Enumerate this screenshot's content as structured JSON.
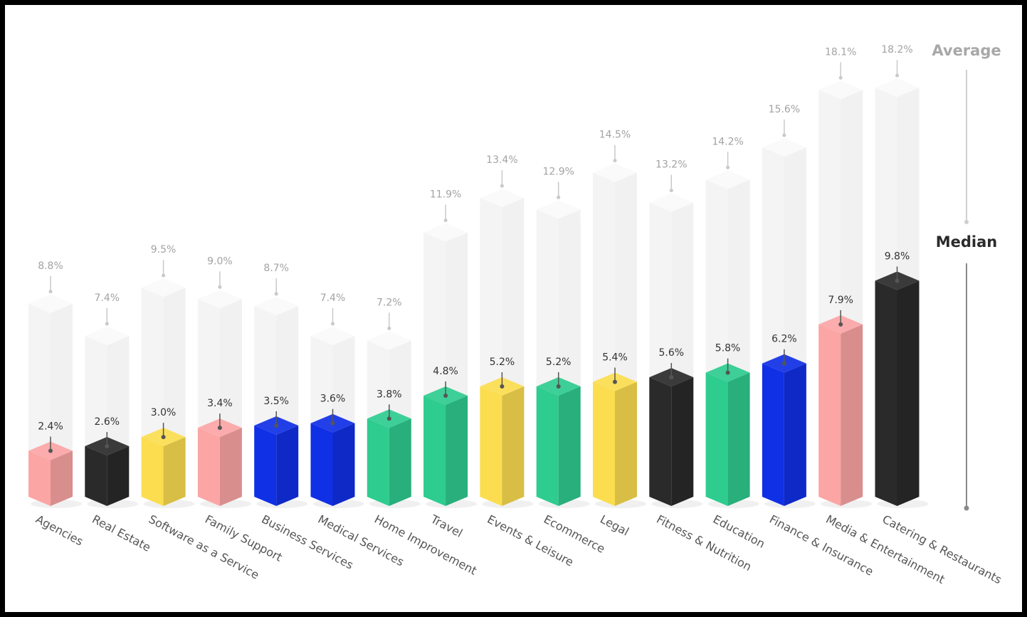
{
  "chart_data": {
    "type": "bar",
    "categories": [
      "Agencies",
      "Real Estate",
      "Software as a Service",
      "Family Support",
      "Business Services",
      "Medical Services",
      "Home Improvement",
      "Travel",
      "Events & Leisure",
      "Ecommerce",
      "Legal",
      "Fitness & Nutrition",
      "Education",
      "Finance & Insurance",
      "Media & Entertainment",
      "Catering & Restaurants"
    ],
    "category_icons": [
      "megaphone-icon",
      "house-icon",
      "gear-icon",
      "family-icon",
      "handshake-icon",
      "eye-icon",
      "toolbox-icon",
      "airplane-icon",
      "calendar-check-icon",
      "cart-icon",
      "gavel-icon",
      "dumbbell-icon",
      "book-icon",
      "dollar-coin-icon",
      "play-icon",
      "food-plate-icon"
    ],
    "series": [
      {
        "name": "Average",
        "values": [
          8.8,
          7.4,
          9.5,
          9.0,
          8.7,
          7.4,
          7.2,
          11.9,
          13.4,
          12.9,
          14.5,
          13.2,
          14.2,
          15.6,
          18.1,
          18.2
        ]
      },
      {
        "name": "Median",
        "values": [
          2.4,
          2.6,
          3.0,
          3.4,
          3.5,
          3.6,
          3.8,
          4.8,
          5.2,
          5.2,
          5.4,
          5.6,
          5.8,
          6.2,
          7.9,
          9.8
        ]
      }
    ],
    "value_labels": {
      "average": [
        "8.8%",
        "7.4%",
        "9.5%",
        "9.0%",
        "8.7%",
        "7.4%",
        "7.2%",
        "11.9%",
        "13.4%",
        "12.9%",
        "14.5%",
        "13.2%",
        "14.2%",
        "15.6%",
        "18.1%",
        "18.2%"
      ],
      "median": [
        "2.4%",
        "2.6%",
        "3.0%",
        "3.4%",
        "3.5%",
        "3.6%",
        "3.8%",
        "4.8%",
        "5.2%",
        "5.2%",
        "5.4%",
        "5.6%",
        "5.8%",
        "6.2%",
        "7.9%",
        "9.8%"
      ]
    },
    "bar_colors": [
      "#fca5a5",
      "#2a2a2a",
      "#fbdd4f",
      "#fca5a5",
      "#1030e6",
      "#1030e6",
      "#2ecc8f",
      "#2ecc8f",
      "#fbdd4f",
      "#2ecc8f",
      "#fbdd4f",
      "#2a2a2a",
      "#2ecc8f",
      "#1030e6",
      "#fca5a5",
      "#2a2a2a"
    ],
    "legend": {
      "average": "Average",
      "median": "Median"
    },
    "ylim": [
      0,
      19
    ],
    "grid": false,
    "legend_position": "right"
  }
}
